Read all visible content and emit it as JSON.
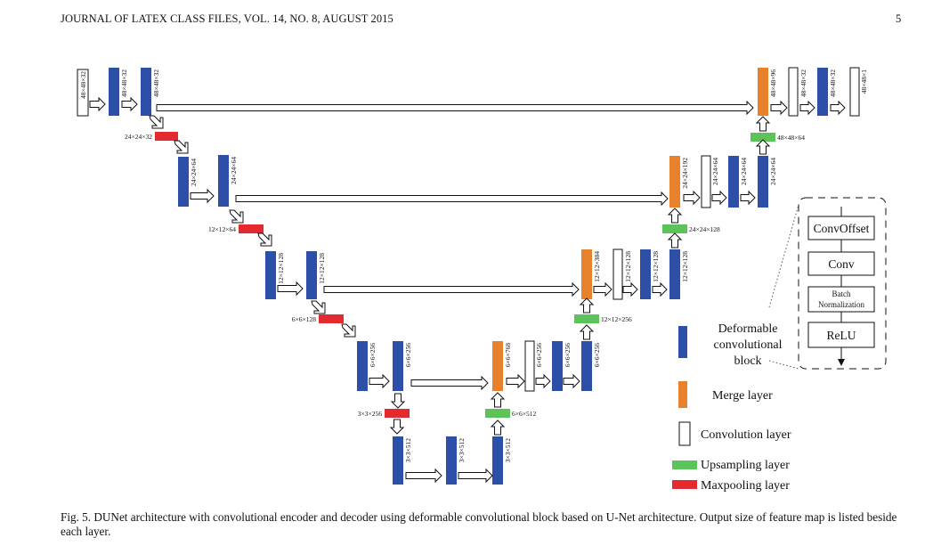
{
  "header": {
    "journal": "JOURNAL OF LATEX CLASS FILES, VOL. 14, NO. 8, AUGUST 2015",
    "page_number": "5"
  },
  "layer_sizes": {
    "input": "48×48×32",
    "l1_conv": "48×48×32",
    "l1_out": "48×48×32",
    "pool1": "24×24×32",
    "l2_a": "24×24×64",
    "l2_b": "24×24×64",
    "pool2": "12×12×64",
    "l3_a": "12×12×128",
    "l3_b": "12×12×128",
    "pool3": "6×6×128",
    "l4_a": "6×6×256",
    "l4_b": "6×6×256",
    "pool4": "3×3×256",
    "bottom_a": "3×3×512",
    "bottom_b": "3×3×512",
    "bottom_c": "3×3×512",
    "up4": "6×6×512",
    "d4_merge": "6×6×768",
    "d4_conv": "6×6×256",
    "d4_a": "6×6×256",
    "d4_b": "6×6×256",
    "up3": "12×12×256",
    "d3_merge": "12×12×384",
    "d3_conv": "12×12×128",
    "d3_a": "12×12×128",
    "d3_b": "12×12×128",
    "up2": "24×24×128",
    "d2_merge": "24×24×192",
    "d2_conv": "24×24×64",
    "d2_a": "24×24×64",
    "d2_b": "24×24×64",
    "up1": "48×48×64",
    "d1_merge": "48×48×96",
    "d1_conv": "48×48×32",
    "d1_a": "48×48×32",
    "output": "48×48×1"
  },
  "block_detail": {
    "items": [
      "ConvOffset",
      "Conv",
      "Batch Normalization",
      "ReLU"
    ]
  },
  "legend": {
    "deformable": "Deformable convolutional block",
    "merge": "Merge layer",
    "convolution": "Convolution layer",
    "upsampling": "Upsampling layer",
    "maxpooling": "Maxpooling layer"
  },
  "colors": {
    "deformable": "#2e4fa8",
    "merge": "#e8812c",
    "upsampling": "#5cc35a",
    "maxpooling": "#e32a2f"
  },
  "caption": "Fig. 5.  DUNet architecture with convolutional encoder and decoder using deformable convolutional block based on U-Net architecture. Output size of feature map is listed beside each layer."
}
